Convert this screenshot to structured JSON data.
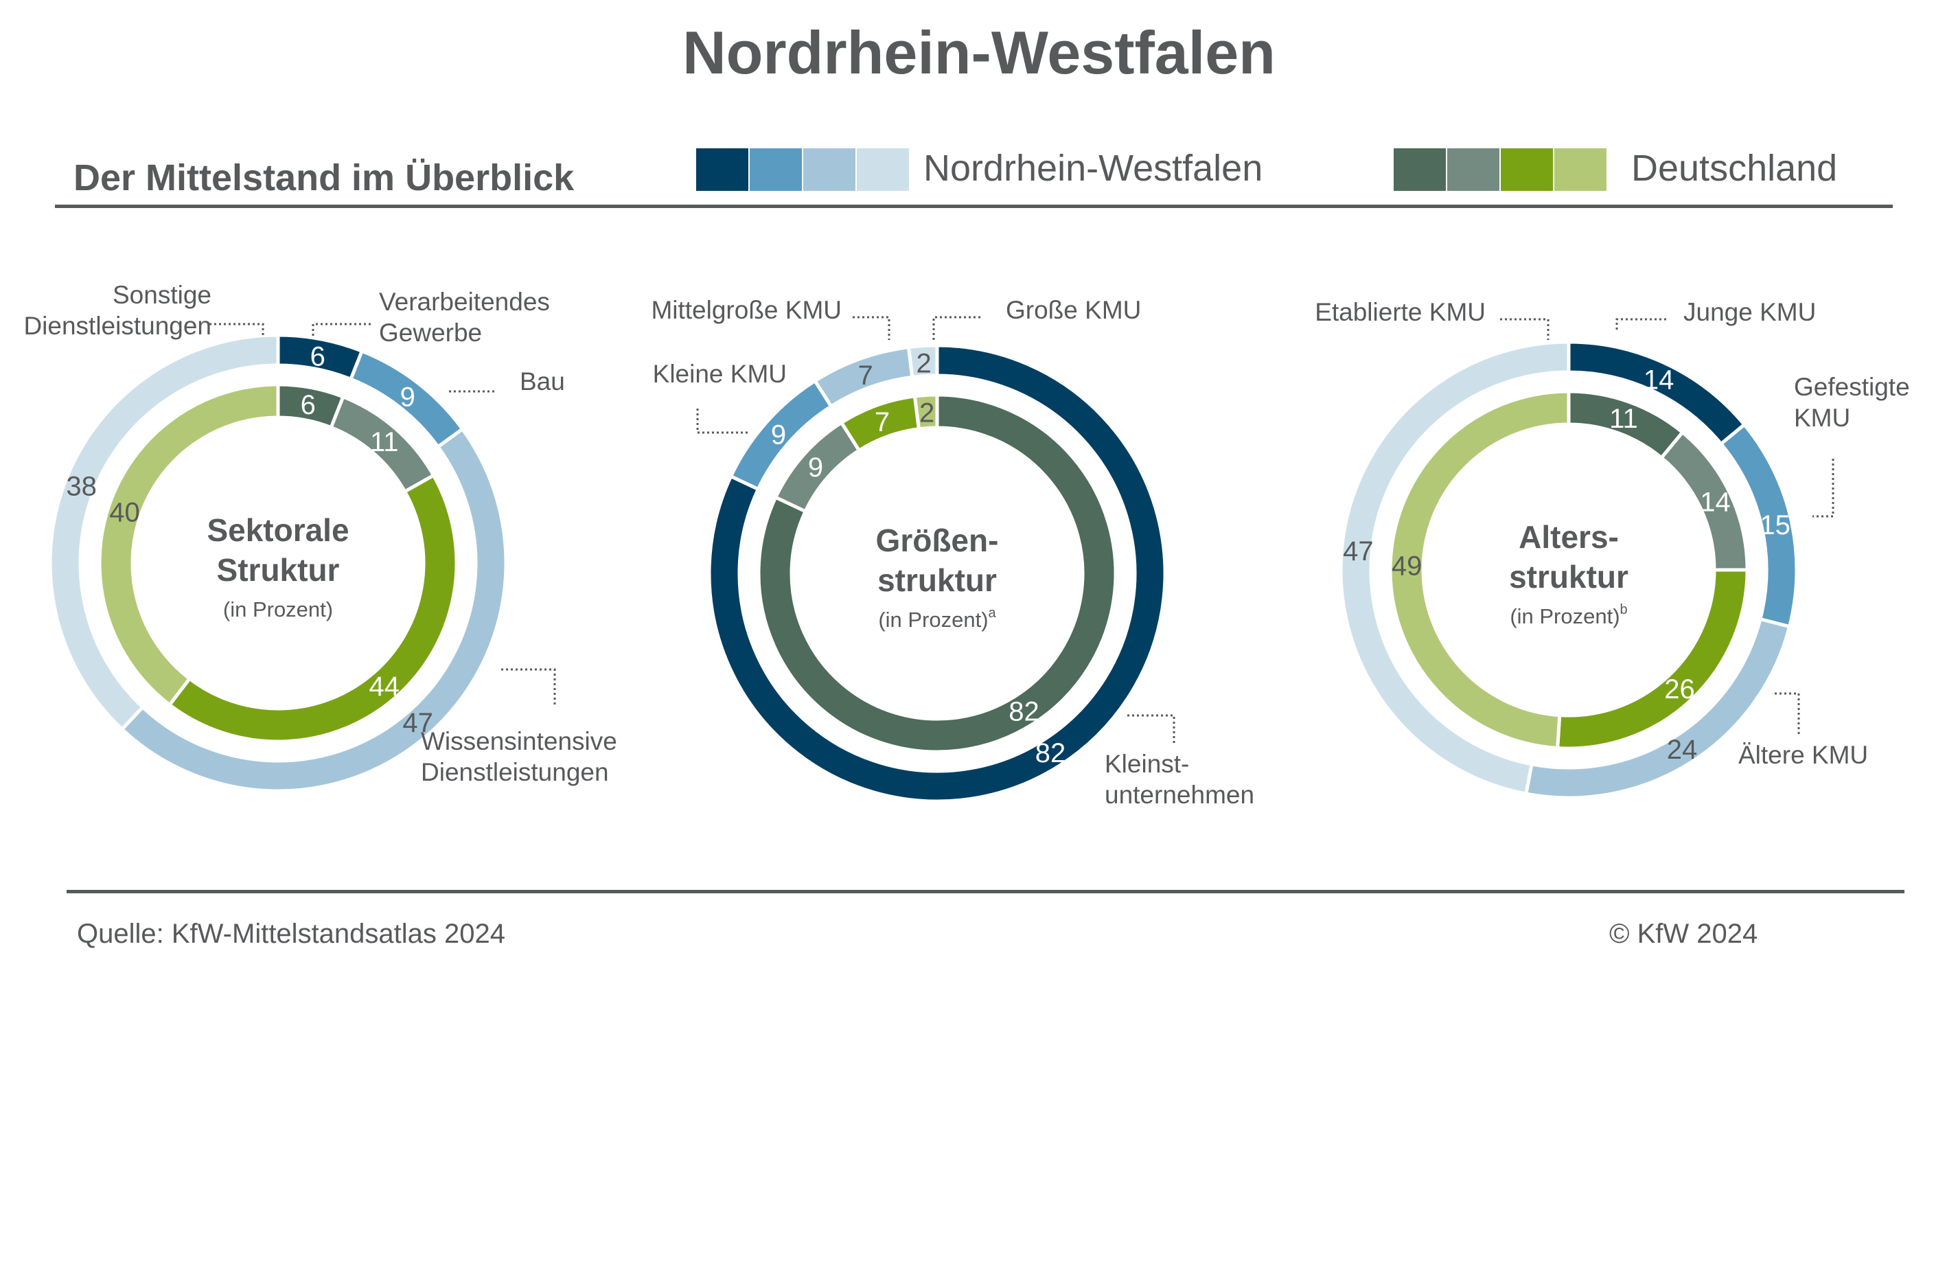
{
  "header": {
    "title": "Nordrhein-Westfalen",
    "subtitle": "Der Mittelstand im Überblick"
  },
  "legend": {
    "region_label": "Nordrhein-Westfalen",
    "region_colors": [
      "#003f62",
      "#5a9bc2",
      "#a4c5d9",
      "#cde0ea"
    ],
    "national_label": "Deutschland",
    "national_colors": [
      "#4e6b5c",
      "#738b80",
      "#7aa314",
      "#b3c876"
    ]
  },
  "footer": {
    "source": "Quelle: KfW-Mittelstandsatlas 2024",
    "copyright": "© KfW 2024"
  },
  "chart_data": [
    {
      "type": "donut",
      "title": "Sektorale Struktur",
      "title_lines": [
        "Sektorale",
        "Struktur"
      ],
      "unit": "(in Prozent)",
      "categories": [
        "Verarbeitendes Gewerbe",
        "Bau",
        "Wissensintensive Dienstleistungen",
        "Sonstige Dienstleistungen"
      ],
      "category_labels": [
        [
          "Verarbeitendes",
          "Gewerbe"
        ],
        [
          "Bau"
        ],
        [
          "Wissensintensive",
          "Dienstleistungen"
        ],
        [
          "Sonstige",
          "Dienstleistungen"
        ]
      ],
      "series": [
        {
          "name": "Nordrhein-Westfalen",
          "ring": "outer",
          "values": [
            6,
            9,
            47,
            38
          ]
        },
        {
          "name": "Deutschland",
          "ring": "inner",
          "values": [
            6,
            11,
            44,
            40
          ]
        }
      ]
    },
    {
      "type": "donut",
      "title": "Größenstruktur",
      "title_lines": [
        "Größen-",
        "struktur"
      ],
      "unit": "(in Prozent)",
      "footnote": "a",
      "categories": [
        "Kleinstunternehmen",
        "Kleine KMU",
        "Mittelgroße KMU",
        "Große KMU"
      ],
      "category_labels": [
        [
          "Kleinst-",
          "unternehmen"
        ],
        [
          "Kleine KMU"
        ],
        [
          "Mittelgroße KMU"
        ],
        [
          "Große KMU"
        ]
      ],
      "series": [
        {
          "name": "Nordrhein-Westfalen",
          "ring": "outer",
          "values": [
            82,
            9,
            7,
            2
          ]
        },
        {
          "name": "Deutschland",
          "ring": "inner",
          "values": [
            82,
            9,
            7,
            2
          ]
        }
      ]
    },
    {
      "type": "donut",
      "title": "Altersstruktur",
      "title_lines": [
        "Alters-",
        "struktur"
      ],
      "unit": "(in Prozent)",
      "footnote": "b",
      "categories": [
        "Junge KMU",
        "Gefestigte KMU",
        "Ältere KMU",
        "Etablierte KMU"
      ],
      "category_labels": [
        [
          "Junge KMU"
        ],
        [
          "Gefestigte",
          "KMU"
        ],
        [
          "Ältere KMU"
        ],
        [
          "Etablierte KMU"
        ]
      ],
      "series": [
        {
          "name": "Nordrhein-Westfalen",
          "ring": "outer",
          "values": [
            14,
            15,
            24,
            47
          ]
        },
        {
          "name": "Deutschland",
          "ring": "inner",
          "values": [
            11,
            14,
            26,
            49
          ]
        }
      ]
    }
  ]
}
